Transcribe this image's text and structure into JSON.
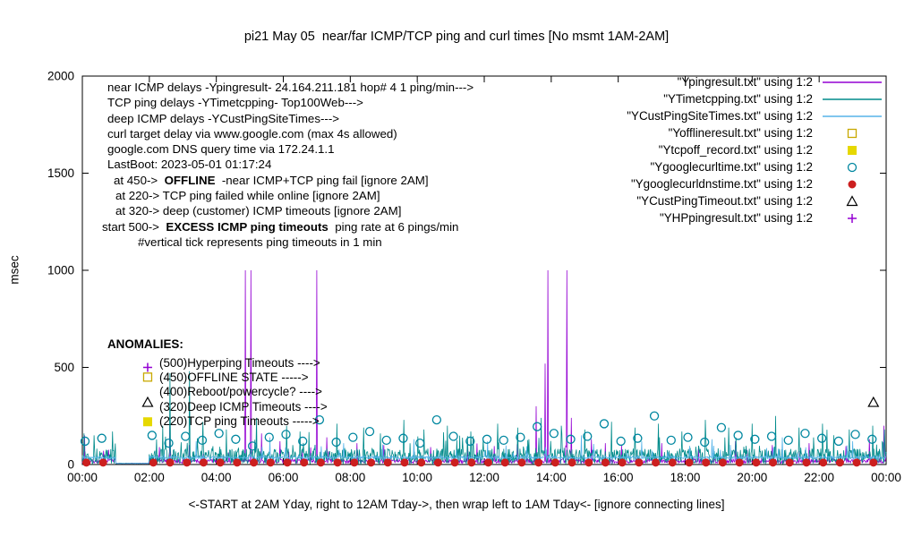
{
  "chart_data": {
    "type": "line",
    "title": "pi21 May 05  near/far ICMP/TCP ping and curl times [No msmt 1AM-2AM]",
    "ylabel": "msec",
    "xlabel": "<-START at 2AM Yday, right to 12AM Tday->, then wrap left to 1AM Tday<- [ignore connecting lines]",
    "xlim_hours": [
      0,
      24
    ],
    "ylim": [
      0,
      2000
    ],
    "yticks": [
      0,
      500,
      1000,
      1500,
      2000
    ],
    "xtick_hours": [
      0,
      2,
      4,
      6,
      8,
      10,
      12,
      14,
      16,
      18,
      20,
      22,
      24
    ],
    "xtick_labels": [
      "00:00",
      "02:00",
      "04:00",
      "06:00",
      "08:00",
      "10:00",
      "12:00",
      "14:00",
      "16:00",
      "18:00",
      "20:00",
      "22:00",
      "00:00"
    ],
    "gap_hours": [
      1,
      2
    ],
    "legend_position": "top-right",
    "grid": false,
    "annotations": {
      "lines": [
        {
          "indent": 0,
          "segments": [
            "near ICMP delays -Ypingresult- 24.164.211.181 hop# 4 1 ping/min--->"
          ]
        },
        {
          "indent": 0,
          "segments": [
            "TCP ping delays -YTimetcpping- Top100Web--->"
          ]
        },
        {
          "indent": 0,
          "segments": [
            "deep ICMP delays -YCustPingSiteTimes--->"
          ]
        },
        {
          "indent": 0,
          "segments": [
            "curl target delay via www.google.com (max 4s allowed)"
          ]
        },
        {
          "indent": 0,
          "segments": [
            "google.com DNS query time via 172.24.1.1"
          ]
        },
        {
          "indent": 0,
          "segments": [
            "LastBoot: 2023-05-01 01:17:24"
          ]
        },
        {
          "indent": 7,
          "segments": [
            "at 450->  ",
            {
              "b": "OFFLINE"
            },
            "  -near ICMP+TCP ping fail [ignore 2AM]"
          ]
        },
        {
          "indent": 9,
          "segments": [
            "at 220-> TCP ping failed while online [ignore 2AM]"
          ]
        },
        {
          "indent": 9,
          "segments": [
            "at 320-> deep (customer) ICMP timeouts [ignore 2AM]"
          ]
        },
        {
          "indent": -6,
          "segments": [
            "start 500->  ",
            {
              "b": "EXCESS ICMP ping timeouts"
            },
            "  ping rate at 6 pings/min"
          ]
        },
        {
          "indent": 34,
          "segments": [
            "#vertical tick represents ping timeouts in 1 min"
          ]
        }
      ]
    },
    "anomalies": {
      "header": "ANOMALIES:",
      "lines": [
        "(500)Hyperping Timeouts ---->",
        "(450)OFFLINE STATE ----->",
        "(400)Reboot/powercycle? ---->",
        "(320)Deep ICMP Timeouts ---->",
        "(220)TCP ping Timeouts ----->"
      ]
    },
    "series": [
      {
        "name": "Ypingresult",
        "legend_label": "\"Ypingresult.txt\" using 1:2",
        "style": "line",
        "color": "#9400d3",
        "baseline": {
          "level": 14,
          "jitter": 22,
          "spike_prob": 0.02,
          "spike_amp": 90,
          "seed": 7
        },
        "spikes": [
          [
            0.07,
            150
          ],
          [
            2.3,
            90
          ],
          [
            2.62,
            200
          ],
          [
            3.2,
            100
          ],
          [
            4.87,
            1000
          ],
          [
            5.03,
            1000
          ],
          [
            5.35,
            160
          ],
          [
            5.9,
            120
          ],
          [
            7.0,
            1000
          ],
          [
            7.3,
            140
          ],
          [
            8.2,
            110
          ],
          [
            9.0,
            100
          ],
          [
            10.4,
            90
          ],
          [
            11.5,
            110
          ],
          [
            12.3,
            95
          ],
          [
            13.55,
            300
          ],
          [
            13.82,
            520
          ],
          [
            13.9,
            1000
          ],
          [
            14.47,
            1000
          ],
          [
            14.6,
            240
          ],
          [
            15.2,
            130
          ],
          [
            16.1,
            100
          ],
          [
            17.3,
            110
          ],
          [
            18.4,
            95
          ],
          [
            19.5,
            120
          ],
          [
            20.6,
            100
          ],
          [
            21.7,
            110
          ],
          [
            22.8,
            95
          ],
          [
            23.5,
            130
          ],
          [
            23.93,
            200
          ]
        ]
      },
      {
        "name": "YTimetcpping",
        "legend_label": "\"YTimetcpping.txt\" using 1:2",
        "style": "line",
        "color": "#008b8b",
        "baseline": {
          "level": 30,
          "jitter": 80,
          "spike_prob": 0.06,
          "spike_amp": 120,
          "seed": 13
        },
        "spikes": [
          [
            0.05,
            160
          ],
          [
            0.35,
            150
          ],
          [
            0.9,
            170
          ],
          [
            2.4,
            200
          ],
          [
            2.62,
            470
          ],
          [
            3.2,
            480
          ],
          [
            3.6,
            220
          ],
          [
            4.3,
            180
          ],
          [
            5.2,
            240
          ],
          [
            6.1,
            200
          ],
          [
            6.5,
            170
          ],
          [
            7.6,
            210
          ],
          [
            8.4,
            190
          ],
          [
            8.9,
            160
          ],
          [
            9.6,
            230
          ],
          [
            10.2,
            180
          ],
          [
            10.9,
            200
          ],
          [
            11.6,
            170
          ],
          [
            12.4,
            210
          ],
          [
            13.0,
            190
          ],
          [
            13.7,
            240
          ],
          [
            14.3,
            200
          ],
          [
            15.0,
            180
          ],
          [
            15.8,
            220
          ],
          [
            16.5,
            190
          ],
          [
            17.2,
            210
          ],
          [
            17.9,
            170
          ],
          [
            18.6,
            230
          ],
          [
            19.3,
            190
          ],
          [
            20.0,
            210
          ],
          [
            20.7,
            250
          ],
          [
            21.4,
            190
          ],
          [
            22.1,
            210
          ],
          [
            22.9,
            180
          ],
          [
            23.6,
            200
          ],
          [
            23.95,
            180
          ]
        ]
      },
      {
        "name": "YCustPingSiteTimes",
        "legend_label": "\"YCustPingSiteTimes.txt\" using 1:2",
        "style": "line",
        "color": "#56b4e9",
        "baseline": {
          "level": 34,
          "jitter": 14,
          "spike_prob": 0.03,
          "spike_amp": 70,
          "seed": 21
        },
        "spikes": [
          [
            3.4,
            120
          ],
          [
            5.6,
            140
          ],
          [
            7.8,
            110
          ],
          [
            9.9,
            130
          ],
          [
            12.1,
            120
          ],
          [
            14.9,
            150
          ],
          [
            16.7,
            120
          ],
          [
            18.8,
            130
          ],
          [
            20.9,
            140
          ],
          [
            23.0,
            120
          ]
        ]
      },
      {
        "name": "Yofflineresult",
        "legend_label": "\"Yofflineresult.txt\" using 1:2",
        "style": "square-open",
        "color": "#c8a800",
        "points": {
          "pairs": [
            [
              1.95,
              450
            ]
          ]
        }
      },
      {
        "name": "Ytcpoff_record",
        "legend_label": "\"Ytcpoff_record.txt\" using 1:2",
        "style": "square-filled",
        "color": "#e6d800",
        "points": {
          "pairs": [
            [
              1.95,
              220
            ]
          ]
        }
      },
      {
        "name": "Ygooglecurltime",
        "legend_label": "\"Ygooglecurltime.txt\" using 1:2",
        "style": "circle-open",
        "color": "#0087a0",
        "points": {
          "x": [
            0.08,
            0.58,
            2.08,
            2.58,
            3.08,
            3.58,
            4.08,
            4.58,
            5.08,
            5.58,
            6.08,
            6.58,
            7.08,
            7.58,
            8.08,
            8.58,
            9.08,
            9.58,
            10.08,
            10.58,
            11.08,
            11.58,
            12.08,
            12.58,
            13.08,
            13.58,
            14.08,
            14.58,
            15.08,
            15.58,
            16.08,
            16.58,
            17.08,
            17.58,
            18.08,
            18.58,
            19.08,
            19.58,
            20.08,
            20.58,
            21.08,
            21.58,
            22.08,
            22.58,
            23.08,
            23.58
          ],
          "y": [
            120,
            135,
            150,
            110,
            145,
            125,
            160,
            130,
            95,
            140,
            155,
            120,
            230,
            115,
            140,
            170,
            125,
            135,
            110,
            230,
            145,
            120,
            130,
            125,
            140,
            195,
            160,
            130,
            145,
            210,
            120,
            135,
            250,
            125,
            140,
            115,
            190,
            150,
            130,
            145,
            125,
            160,
            135,
            120,
            155,
            130
          ]
        }
      },
      {
        "name": "Ygooglecurldnstime",
        "legend_label": "\"Ygooglecurldnstime.txt\" using 1:2",
        "style": "circle-filled",
        "color": "#cc1f1f",
        "points": {
          "x": [
            0.12,
            0.62,
            2.12,
            2.62,
            3.12,
            3.62,
            4.12,
            4.62,
            5.12,
            5.62,
            6.12,
            6.62,
            7.12,
            7.62,
            8.12,
            8.62,
            9.12,
            9.62,
            10.12,
            10.62,
            11.12,
            11.62,
            12.12,
            12.62,
            13.12,
            13.62,
            14.12,
            14.62,
            15.12,
            15.62,
            16.12,
            16.62,
            17.12,
            17.62,
            18.12,
            18.62,
            19.12,
            19.62,
            20.12,
            20.62,
            21.12,
            21.62,
            22.12,
            22.62,
            23.12,
            23.62
          ],
          "y_all": 10
        }
      },
      {
        "name": "YCustPingTimeout",
        "legend_label": "\"YCustPingTimeout.txt\" using 1:2",
        "style": "triangle-open",
        "color": "#000000",
        "points": {
          "pairs": [
            [
              1.95,
              320
            ],
            [
              23.62,
              320
            ]
          ]
        }
      },
      {
        "name": "YHPpingresult",
        "legend_label": "\"YHPpingresult.txt\" using 1:2",
        "style": "plus",
        "color": "#9400d3",
        "points": {
          "pairs": [
            [
              1.95,
              500
            ]
          ]
        }
      }
    ]
  }
}
